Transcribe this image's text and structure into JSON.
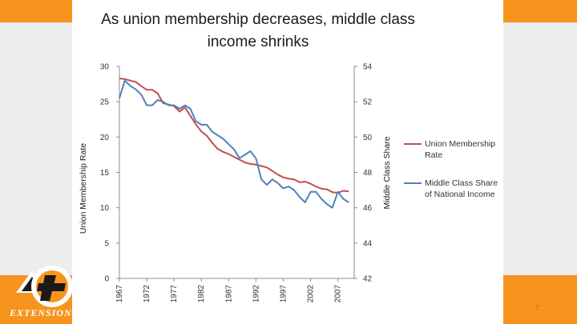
{
  "slide": {
    "page_number": "7",
    "logo_text": "EXTENSION",
    "colors": {
      "band": "#f7941d",
      "side": "#ededed"
    }
  },
  "chart_data": {
    "type": "line",
    "title": "As union membership decreases, middle class income shrinks",
    "title_lines": [
      "As union membership decreases, middle class",
      "income shrinks"
    ],
    "ylabel_left": "Union Membership Rate",
    "ylabel_right": "Middle Class Share",
    "ylim_left": [
      0,
      30
    ],
    "ylim_right": [
      42,
      54
    ],
    "yticks_left": [
      "0",
      "5",
      "10",
      "15",
      "20",
      "25",
      "30"
    ],
    "yticks_right": [
      "42",
      "44",
      "46",
      "48",
      "50",
      "52",
      "54"
    ],
    "xticks": [
      "1967",
      "1972",
      "1977",
      "1982",
      "1987",
      "1992",
      "1997",
      "2002",
      "2007"
    ],
    "grid": false,
    "legend_position": "right",
    "series": [
      {
        "name": "Union Membership Rate",
        "axis": "left",
        "color": "#c0504d",
        "x": [
          1967,
          1968,
          1969,
          1970,
          1971,
          1972,
          1973,
          1974,
          1975,
          1976,
          1977,
          1978,
          1979,
          1980,
          1981,
          1982,
          1983,
          1984,
          1985,
          1986,
          1987,
          1988,
          1989,
          1990,
          1991,
          1992,
          1993,
          1994,
          1995,
          1996,
          1997,
          1998,
          1999,
          2000,
          2001,
          2002,
          2003,
          2004,
          2005,
          2006,
          2007,
          2008,
          2009
        ],
        "values": [
          28.3,
          28.2,
          28.0,
          27.8,
          27.2,
          26.7,
          26.7,
          26.2,
          24.8,
          24.6,
          24.4,
          23.6,
          24.2,
          23.0,
          21.8,
          20.8,
          20.2,
          19.2,
          18.3,
          17.9,
          17.6,
          17.2,
          16.8,
          16.4,
          16.2,
          16.1,
          15.9,
          15.7,
          15.2,
          14.7,
          14.3,
          14.1,
          14.0,
          13.6,
          13.7,
          13.4,
          13.0,
          12.7,
          12.6,
          12.2,
          12.1,
          12.4,
          12.3
        ]
      },
      {
        "name": "Middle Class Share of National Income",
        "axis": "right",
        "color": "#4f81bd",
        "x": [
          1967,
          1968,
          1969,
          1970,
          1971,
          1972,
          1973,
          1974,
          1975,
          1976,
          1977,
          1978,
          1979,
          1980,
          1981,
          1982,
          1983,
          1984,
          1985,
          1986,
          1987,
          1988,
          1989,
          1990,
          1991,
          1992,
          1993,
          1994,
          1995,
          1996,
          1997,
          1998,
          1999,
          2000,
          2001,
          2002,
          2003,
          2004,
          2005,
          2006,
          2007,
          2008,
          2009
        ],
        "values": [
          52.2,
          53.2,
          52.9,
          52.7,
          52.4,
          51.8,
          51.8,
          52.1,
          52.0,
          51.8,
          51.8,
          51.6,
          51.8,
          51.6,
          50.9,
          50.7,
          50.7,
          50.3,
          50.1,
          49.9,
          49.6,
          49.3,
          48.8,
          49.0,
          49.2,
          48.8,
          47.6,
          47.3,
          47.6,
          47.4,
          47.1,
          47.2,
          47.0,
          46.6,
          46.3,
          46.9,
          46.9,
          46.5,
          46.2,
          46.0,
          46.9,
          46.5,
          46.3
        ]
      }
    ],
    "legend": [
      {
        "lines": [
          "Union Membership",
          "Rate"
        ]
      },
      {
        "lines": [
          "Middle Class Share",
          "of National Income"
        ]
      }
    ]
  }
}
